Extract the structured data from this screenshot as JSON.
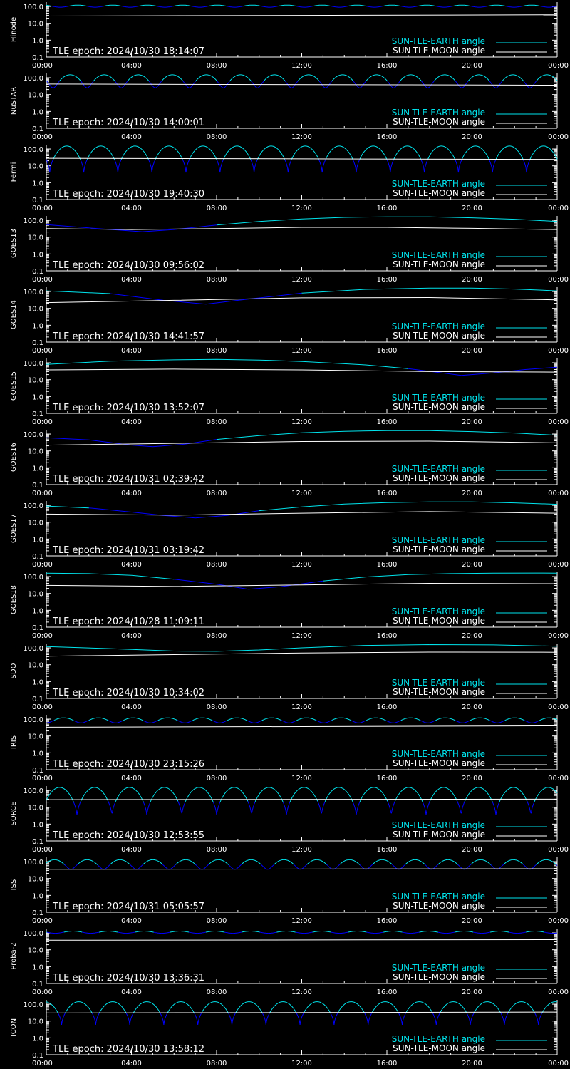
{
  "colors": {
    "earth_angle": "#00e5ee",
    "earth_night": "#0000ff",
    "moon_angle": "#ffffff",
    "background": "#000000",
    "axes": "#ffffff"
  },
  "legend": {
    "earth": "SUN-TLE-EARTH angle",
    "moon": "SUN-TLE-MOON angle"
  },
  "chart_data": [
    {
      "type": "line",
      "ylabel": "Hinode",
      "epoch": "TLE epoch: 2024/10/30 18:14:07",
      "yscale": "log",
      "ylim": [
        0.1,
        180
      ],
      "xlim": [
        0,
        24
      ],
      "x_ticks": [
        "00:00",
        "04:00",
        "08:00",
        "12:00",
        "16:00",
        "20:00",
        "00:00"
      ],
      "y_ticks": [
        "100.0",
        "10.0",
        "1.0",
        "0.1"
      ],
      "earth": {
        "kind": "periodic",
        "period_h": 1.64,
        "max": 120,
        "min": 90,
        "phase": 0.1,
        "cusp": false
      },
      "moon": [
        [
          0,
          27
        ],
        [
          24,
          32
        ]
      ]
    },
    {
      "type": "line",
      "ylabel": "NuSTAR",
      "epoch": "TLE epoch: 2024/10/30 14:00:01",
      "yscale": "log",
      "ylim": [
        0.1,
        180
      ],
      "xlim": [
        0,
        24
      ],
      "x_ticks": [
        "00:00",
        "04:00",
        "08:00",
        "12:00",
        "16:00",
        "20:00",
        "00:00"
      ],
      "y_ticks": [
        "100.0",
        "10.0",
        "1.0",
        "0.1"
      ],
      "earth": {
        "kind": "periodic",
        "period_h": 1.6,
        "max": 150,
        "min": 25,
        "phase": 0.3,
        "cusp": false
      },
      "moon": [
        [
          0,
          42
        ],
        [
          24,
          36
        ]
      ]
    },
    {
      "type": "line",
      "ylabel": "Fermi",
      "epoch": "TLE epoch: 2024/10/30 19:40:30",
      "yscale": "log",
      "ylim": [
        0.1,
        180
      ],
      "xlim": [
        0,
        24
      ],
      "x_ticks": [
        "00:00",
        "04:00",
        "08:00",
        "12:00",
        "16:00",
        "20:00",
        "00:00"
      ],
      "y_ticks": [
        "100.0",
        "10.0",
        "1.0",
        "0.1"
      ],
      "earth": {
        "kind": "periodic",
        "period_h": 1.6,
        "max": 150,
        "min": 4,
        "phase": 0.9,
        "cusp": true
      },
      "moon": [
        [
          0,
          28
        ],
        [
          24,
          24
        ]
      ]
    },
    {
      "type": "line",
      "ylabel": "GOES13",
      "epoch": "TLE epoch: 2024/10/30 09:56:02",
      "yscale": "log",
      "ylim": [
        0.1,
        180
      ],
      "xlim": [
        0,
        24
      ],
      "x_ticks": [
        "00:00",
        "04:00",
        "08:00",
        "12:00",
        "16:00",
        "20:00",
        "00:00"
      ],
      "y_ticks": [
        "100.0",
        "10.0",
        "1.0",
        "0.1"
      ],
      "earth": {
        "kind": "smooth",
        "points": [
          [
            0,
            55
          ],
          [
            2,
            35
          ],
          [
            4.5,
            21
          ],
          [
            6,
            28
          ],
          [
            8,
            52
          ],
          [
            10,
            85
          ],
          [
            12,
            120
          ],
          [
            14,
            148
          ],
          [
            16,
            160
          ],
          [
            18,
            158
          ],
          [
            20,
            140
          ],
          [
            22,
            115
          ],
          [
            24,
            85
          ]
        ]
      },
      "moon": [
        [
          0,
          32
        ],
        [
          4,
          28
        ],
        [
          8,
          32
        ],
        [
          12,
          38
        ],
        [
          16,
          38
        ],
        [
          20,
          33
        ],
        [
          24,
          28
        ]
      ]
    },
    {
      "type": "line",
      "ylabel": "GOES14",
      "epoch": "TLE epoch: 2024/10/30 14:41:57",
      "yscale": "log",
      "ylim": [
        0.1,
        180
      ],
      "xlim": [
        0,
        24
      ],
      "x_ticks": [
        "00:00",
        "04:00",
        "08:00",
        "12:00",
        "16:00",
        "20:00",
        "00:00"
      ],
      "y_ticks": [
        "100.0",
        "10.0",
        "1.0",
        "0.1"
      ],
      "earth": {
        "kind": "smooth",
        "points": [
          [
            0,
            110
          ],
          [
            3,
            75
          ],
          [
            5.5,
            30
          ],
          [
            7.5,
            18
          ],
          [
            9,
            30
          ],
          [
            12,
            80
          ],
          [
            15,
            135
          ],
          [
            18,
            158
          ],
          [
            20,
            158
          ],
          [
            22,
            140
          ],
          [
            24,
            110
          ]
        ]
      },
      "moon": [
        [
          0,
          22
        ],
        [
          6,
          30
        ],
        [
          12,
          42
        ],
        [
          18,
          44
        ],
        [
          24,
          32
        ]
      ]
    },
    {
      "type": "line",
      "ylabel": "GOES15",
      "epoch": "TLE epoch: 2024/10/30 13:52:07",
      "yscale": "log",
      "ylim": [
        0.1,
        180
      ],
      "xlim": [
        0,
        24
      ],
      "x_ticks": [
        "00:00",
        "04:00",
        "08:00",
        "12:00",
        "16:00",
        "20:00",
        "00:00"
      ],
      "y_ticks": [
        "100.0",
        "10.0",
        "1.0",
        "0.1"
      ],
      "earth": {
        "kind": "smooth",
        "points": [
          [
            0,
            80
          ],
          [
            3,
            125
          ],
          [
            6,
            150
          ],
          [
            8,
            158
          ],
          [
            10,
            145
          ],
          [
            12,
            120
          ],
          [
            15,
            75
          ],
          [
            17,
            45
          ],
          [
            19.5,
            18
          ],
          [
            21,
            25
          ],
          [
            22.5,
            40
          ],
          [
            24,
            55
          ]
        ]
      },
      "moon": [
        [
          0,
          38
        ],
        [
          6,
          42
        ],
        [
          12,
          38
        ],
        [
          18,
          30
        ],
        [
          24,
          28
        ]
      ]
    },
    {
      "type": "line",
      "ylabel": "GOES16",
      "epoch": "TLE epoch: 2024/10/31 02:39:42",
      "yscale": "log",
      "ylim": [
        0.1,
        180
      ],
      "xlim": [
        0,
        24
      ],
      "x_ticks": [
        "00:00",
        "04:00",
        "08:00",
        "12:00",
        "16:00",
        "20:00",
        "00:00"
      ],
      "y_ticks": [
        "100.0",
        "10.0",
        "1.0",
        "0.1"
      ],
      "earth": {
        "kind": "smooth",
        "points": [
          [
            0,
            60
          ],
          [
            2,
            45
          ],
          [
            4,
            22
          ],
          [
            5,
            18
          ],
          [
            6.5,
            25
          ],
          [
            8,
            48
          ],
          [
            10,
            80
          ],
          [
            12,
            118
          ],
          [
            14,
            145
          ],
          [
            16,
            160
          ],
          [
            18,
            158
          ],
          [
            20,
            140
          ],
          [
            22,
            115
          ],
          [
            24,
            85
          ]
        ]
      },
      "moon": [
        [
          0,
          22
        ],
        [
          6,
          28
        ],
        [
          12,
          36
        ],
        [
          18,
          38
        ],
        [
          24,
          30
        ]
      ]
    },
    {
      "type": "line",
      "ylabel": "GOES17",
      "epoch": "TLE epoch: 2024/10/31 03:19:42",
      "yscale": "log",
      "ylim": [
        0.1,
        180
      ],
      "xlim": [
        0,
        24
      ],
      "x_ticks": [
        "00:00",
        "04:00",
        "08:00",
        "12:00",
        "16:00",
        "20:00",
        "00:00"
      ],
      "y_ticks": [
        "100.0",
        "10.0",
        "1.0",
        "0.1"
      ],
      "earth": {
        "kind": "smooth",
        "points": [
          [
            0,
            90
          ],
          [
            2,
            70
          ],
          [
            4,
            40
          ],
          [
            5.5,
            25
          ],
          [
            7,
            18
          ],
          [
            8.5,
            25
          ],
          [
            10,
            48
          ],
          [
            12,
            80
          ],
          [
            14,
            118
          ],
          [
            16,
            145
          ],
          [
            18,
            160
          ],
          [
            20,
            158
          ],
          [
            22,
            140
          ],
          [
            24,
            115
          ]
        ]
      },
      "moon": [
        [
          0,
          30
        ],
        [
          6,
          26
        ],
        [
          12,
          34
        ],
        [
          18,
          42
        ],
        [
          24,
          34
        ]
      ]
    },
    {
      "type": "line",
      "ylabel": "GOES18",
      "epoch": "TLE epoch: 2024/10/28 11:09:11",
      "yscale": "log",
      "ylim": [
        0.1,
        180
      ],
      "xlim": [
        0,
        24
      ],
      "x_ticks": [
        "00:00",
        "04:00",
        "08:00",
        "12:00",
        "16:00",
        "20:00",
        "00:00"
      ],
      "y_ticks": [
        "100.0",
        "10.0",
        "1.0",
        "0.1"
      ],
      "earth": {
        "kind": "smooth",
        "points": [
          [
            0,
            160
          ],
          [
            2,
            150
          ],
          [
            4,
            118
          ],
          [
            6,
            70
          ],
          [
            8,
            35
          ],
          [
            9.5,
            18
          ],
          [
            11,
            25
          ],
          [
            13,
            55
          ],
          [
            15,
            95
          ],
          [
            17,
            130
          ],
          [
            19,
            150
          ],
          [
            21,
            160
          ],
          [
            23,
            162
          ],
          [
            24,
            160
          ]
        ]
      },
      "moon": [
        [
          0,
          30
        ],
        [
          6,
          26
        ],
        [
          12,
          32
        ],
        [
          18,
          40
        ],
        [
          24,
          38
        ]
      ]
    },
    {
      "type": "line",
      "ylabel": "SDO",
      "epoch": "TLE epoch: 2024/10/30 10:34:02",
      "yscale": "log",
      "ylim": [
        0.1,
        180
      ],
      "xlim": [
        0,
        24
      ],
      "x_ticks": [
        "00:00",
        "04:00",
        "08:00",
        "12:00",
        "16:00",
        "20:00",
        "00:00"
      ],
      "y_ticks": [
        "100.0",
        "10.0",
        "1.0",
        "0.1"
      ],
      "earth": {
        "kind": "smooth",
        "points": [
          [
            0,
            120
          ],
          [
            3,
            90
          ],
          [
            6,
            65
          ],
          [
            8,
            62
          ],
          [
            10,
            75
          ],
          [
            12,
            100
          ],
          [
            15,
            140
          ],
          [
            18,
            155
          ],
          [
            21,
            150
          ],
          [
            24,
            125
          ]
        ]
      },
      "moon": [
        [
          0,
          32
        ],
        [
          6,
          40
        ],
        [
          12,
          50
        ],
        [
          18,
          56
        ],
        [
          24,
          55
        ]
      ]
    },
    {
      "type": "line",
      "ylabel": "IRIS",
      "epoch": "TLE epoch: 2024/10/30 23:15:26",
      "yscale": "log",
      "ylim": [
        0.1,
        180
      ],
      "xlim": [
        0,
        24
      ],
      "x_ticks": [
        "00:00",
        "04:00",
        "08:00",
        "12:00",
        "16:00",
        "20:00",
        "00:00"
      ],
      "y_ticks": [
        "100.0",
        "10.0",
        "1.0",
        "0.1"
      ],
      "earth": {
        "kind": "periodic",
        "period_h": 1.63,
        "max": 120,
        "min": 60,
        "phase": 0.5,
        "cusp": false
      },
      "moon": [
        [
          0,
          33
        ],
        [
          24,
          40
        ]
      ]
    },
    {
      "type": "line",
      "ylabel": "SORCE",
      "epoch": "TLE epoch: 2024/10/30 12:53:55",
      "yscale": "log",
      "ylim": [
        0.1,
        180
      ],
      "xlim": [
        0,
        24
      ],
      "x_ticks": [
        "00:00",
        "04:00",
        "08:00",
        "12:00",
        "16:00",
        "20:00",
        "00:00"
      ],
      "y_ticks": [
        "100.0",
        "10.0",
        "1.0",
        "0.1"
      ],
      "earth": {
        "kind": "periodic",
        "period_h": 1.64,
        "max": 150,
        "min": 3,
        "phase": 0.12,
        "cusp": true
      },
      "moon": [
        [
          0,
          28
        ],
        [
          24,
          30
        ]
      ]
    },
    {
      "type": "line",
      "ylabel": "ISS",
      "epoch": "TLE epoch: 2024/10/31 05:05:57",
      "yscale": "log",
      "ylim": [
        0.1,
        180
      ],
      "xlim": [
        0,
        24
      ],
      "x_ticks": [
        "00:00",
        "04:00",
        "08:00",
        "12:00",
        "16:00",
        "20:00",
        "00:00"
      ],
      "y_ticks": [
        "100.0",
        "10.0",
        "1.0",
        "0.1"
      ],
      "earth": {
        "kind": "periodic",
        "period_h": 1.54,
        "max": 130,
        "min": 35,
        "phase": 0.75,
        "cusp": false
      },
      "moon": [
        [
          0,
          35
        ],
        [
          24,
          38
        ]
      ]
    },
    {
      "type": "line",
      "ylabel": "Proba-2",
      "epoch": "TLE epoch: 2024/10/30 13:36:31",
      "yscale": "log",
      "ylim": [
        0.1,
        180
      ],
      "xlim": [
        0,
        24
      ],
      "x_ticks": [
        "00:00",
        "04:00",
        "08:00",
        "12:00",
        "16:00",
        "20:00",
        "00:00"
      ],
      "y_ticks": [
        "100.0",
        "10.0",
        "1.0",
        "0.1"
      ],
      "earth": {
        "kind": "periodic",
        "period_h": 1.67,
        "max": 128,
        "min": 95,
        "phase": 0.25,
        "cusp": false
      },
      "moon": [
        [
          0,
          37
        ],
        [
          24,
          40
        ]
      ]
    },
    {
      "type": "line",
      "ylabel": "ICON",
      "epoch": "TLE epoch: 2024/10/30 13:58:12",
      "yscale": "log",
      "ylim": [
        0.1,
        180
      ],
      "xlim": [
        0,
        24
      ],
      "x_ticks": [
        "00:00",
        "04:00",
        "08:00",
        "12:00",
        "16:00",
        "20:00",
        "00:00"
      ],
      "y_ticks": [
        "100.0",
        "10.0",
        "1.0",
        "0.1"
      ],
      "earth": {
        "kind": "periodic",
        "period_h": 1.6,
        "max": 140,
        "min": 6,
        "phase": 0.55,
        "cusp": true
      },
      "moon": [
        [
          0,
          30
        ],
        [
          24,
          34
        ]
      ]
    }
  ]
}
